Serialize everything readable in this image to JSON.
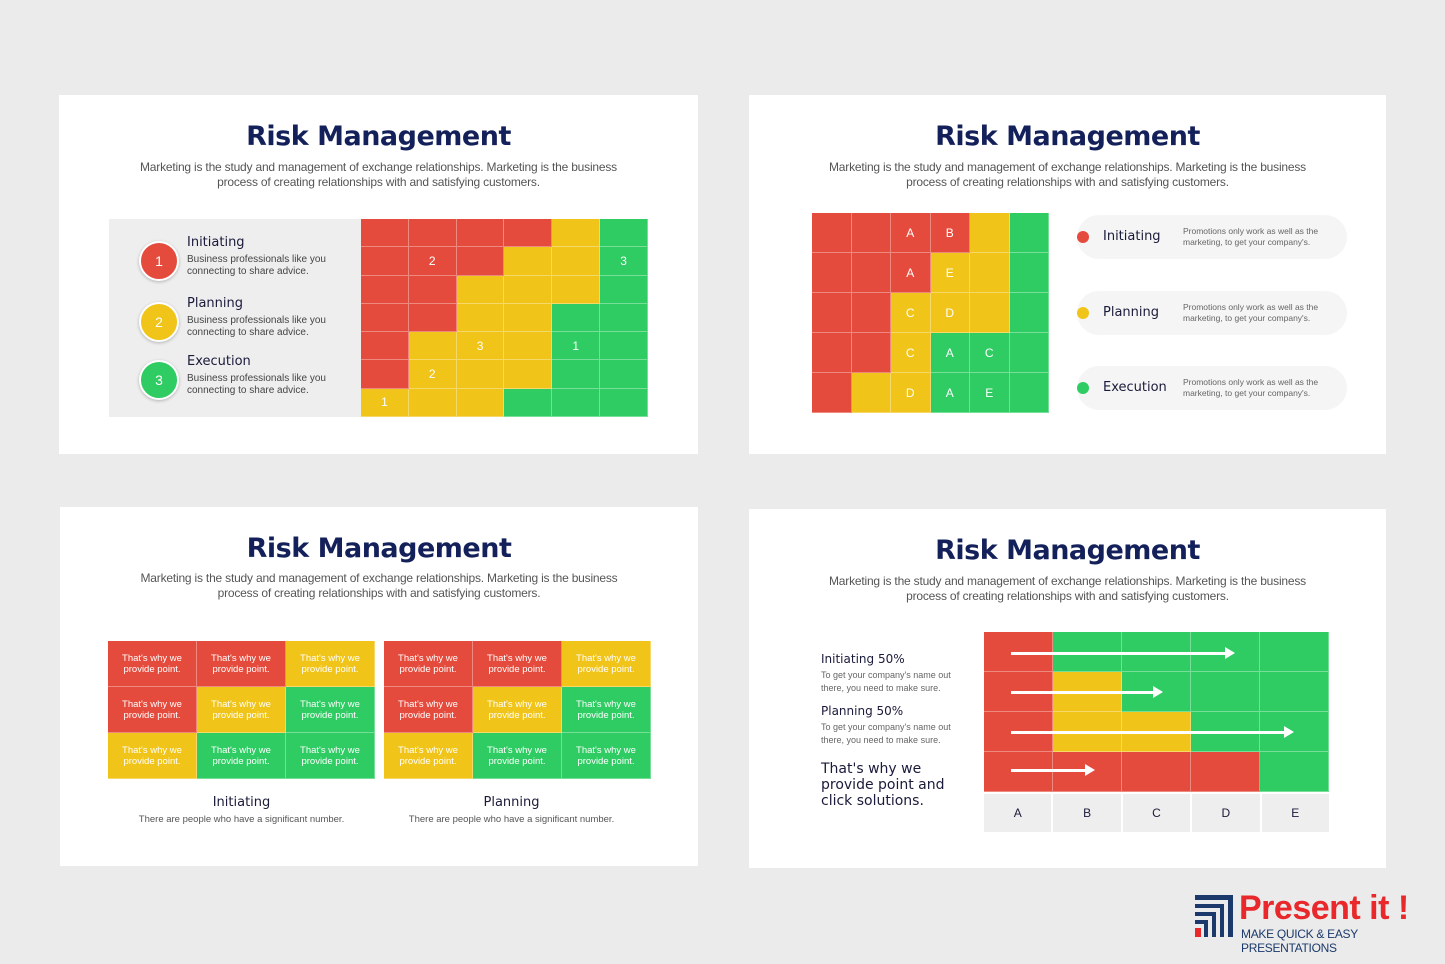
{
  "slide_title": "Risk Management",
  "slide_subtitle_lines": [
    "Marketing is the study and management of exchange relationships. Marketing is the business",
    "process of creating relationships with and satisfying customers."
  ],
  "slide1": {
    "legend": [
      {
        "num": "1",
        "title": "Initiating",
        "desc": "Business professionals like you connecting to share advice.",
        "color": "#e54b3c"
      },
      {
        "num": "2",
        "title": "Planning",
        "desc": "Business professionals like you connecting to share advice.",
        "color": "#f0c419"
      },
      {
        "num": "3",
        "title": "Execution",
        "desc": "Business professionals like you connecting to share advice.",
        "color": "#2ecc62"
      }
    ],
    "grid": [
      [
        [
          "r",
          ""
        ],
        [
          "r",
          ""
        ],
        [
          "r",
          ""
        ],
        [
          "r",
          ""
        ],
        [
          "y",
          ""
        ],
        [
          "g",
          ""
        ]
      ],
      [
        [
          "r",
          ""
        ],
        [
          "r",
          "2"
        ],
        [
          "r",
          ""
        ],
        [
          "y",
          ""
        ],
        [
          "y",
          ""
        ],
        [
          "g",
          "3"
        ]
      ],
      [
        [
          "r",
          ""
        ],
        [
          "r",
          ""
        ],
        [
          "y",
          ""
        ],
        [
          "y",
          ""
        ],
        [
          "y",
          ""
        ],
        [
          "g",
          ""
        ]
      ],
      [
        [
          "r",
          ""
        ],
        [
          "r",
          ""
        ],
        [
          "y",
          ""
        ],
        [
          "y",
          ""
        ],
        [
          "g",
          ""
        ],
        [
          "g",
          ""
        ]
      ],
      [
        [
          "r",
          ""
        ],
        [
          "y",
          ""
        ],
        [
          "y",
          "3"
        ],
        [
          "y",
          ""
        ],
        [
          "g",
          "1"
        ],
        [
          "g",
          ""
        ]
      ],
      [
        [
          "r",
          ""
        ],
        [
          "y",
          "2"
        ],
        [
          "y",
          ""
        ],
        [
          "y",
          ""
        ],
        [
          "g",
          ""
        ],
        [
          "g",
          ""
        ]
      ],
      [
        [
          "y",
          "1"
        ],
        [
          "y",
          ""
        ],
        [
          "y",
          ""
        ],
        [
          "g",
          ""
        ],
        [
          "g",
          ""
        ],
        [
          "g",
          ""
        ]
      ]
    ]
  },
  "slide2": {
    "grid": [
      [
        [
          "r",
          ""
        ],
        [
          "r",
          ""
        ],
        [
          "r",
          "A"
        ],
        [
          "r",
          "B"
        ],
        [
          "y",
          ""
        ],
        [
          "g",
          ""
        ]
      ],
      [
        [
          "r",
          ""
        ],
        [
          "r",
          ""
        ],
        [
          "r",
          "A"
        ],
        [
          "y",
          "E"
        ],
        [
          "y",
          ""
        ],
        [
          "g",
          ""
        ]
      ],
      [
        [
          "r",
          ""
        ],
        [
          "r",
          ""
        ],
        [
          "y",
          "C"
        ],
        [
          "y",
          "D"
        ],
        [
          "y",
          ""
        ],
        [
          "g",
          ""
        ]
      ],
      [
        [
          "r",
          ""
        ],
        [
          "r",
          ""
        ],
        [
          "y",
          "C"
        ],
        [
          "g",
          "A"
        ],
        [
          "g",
          "C"
        ],
        [
          "g",
          ""
        ]
      ],
      [
        [
          "r",
          ""
        ],
        [
          "y",
          ""
        ],
        [
          "y",
          "D"
        ],
        [
          "g",
          "A"
        ],
        [
          "g",
          "E"
        ],
        [
          "g",
          ""
        ]
      ]
    ],
    "pills": [
      {
        "label": "Initiating",
        "desc": "Promotions only work as well as the marketing, to get your company's.",
        "color": "#e54b3c"
      },
      {
        "label": "Planning",
        "desc": "Promotions only work as well as the marketing, to get your company's.",
        "color": "#f0c419"
      },
      {
        "label": "Execution",
        "desc": "Promotions only work as well as the marketing, to get your company's.",
        "color": "#2ecc62"
      }
    ]
  },
  "slide3": {
    "cell_text": "That's why we provide point.",
    "groups": [
      {
        "caption": "Initiating",
        "desc": "There are people who have a significant number.",
        "colors": [
          [
            "r",
            "r",
            "y"
          ],
          [
            "r",
            "y",
            "g"
          ],
          [
            "y",
            "g",
            "g"
          ]
        ]
      },
      {
        "caption": "Planning",
        "desc": "There are people who have a significant number.",
        "colors": [
          [
            "r",
            "r",
            "y"
          ],
          [
            "r",
            "y",
            "g"
          ],
          [
            "y",
            "g",
            "g"
          ]
        ]
      }
    ]
  },
  "slide4": {
    "blocks": [
      {
        "title": "Initiating 50%",
        "desc": "To get your company's name out there, you need to make sure."
      },
      {
        "title": "Planning 50%",
        "desc": "To get your company's name out there, you need to make sure."
      }
    ],
    "big_text": "That's why we provide point and click solutions.",
    "grid": [
      [
        "r",
        "g",
        "g",
        "g",
        "g"
      ],
      [
        "r",
        "y",
        "g",
        "g",
        "g"
      ],
      [
        "r",
        "y",
        "y",
        "g",
        "g"
      ],
      [
        "r",
        "r",
        "r",
        "r",
        "g"
      ]
    ],
    "columns": [
      "A",
      "B",
      "C",
      "D",
      "E"
    ],
    "arrows_end_column": [
      3.6,
      2.6,
      4.5,
      1.6
    ]
  },
  "logo": {
    "word": "Present it !",
    "tagline": "MAKE QUICK & EASY PRESENTATIONS"
  }
}
